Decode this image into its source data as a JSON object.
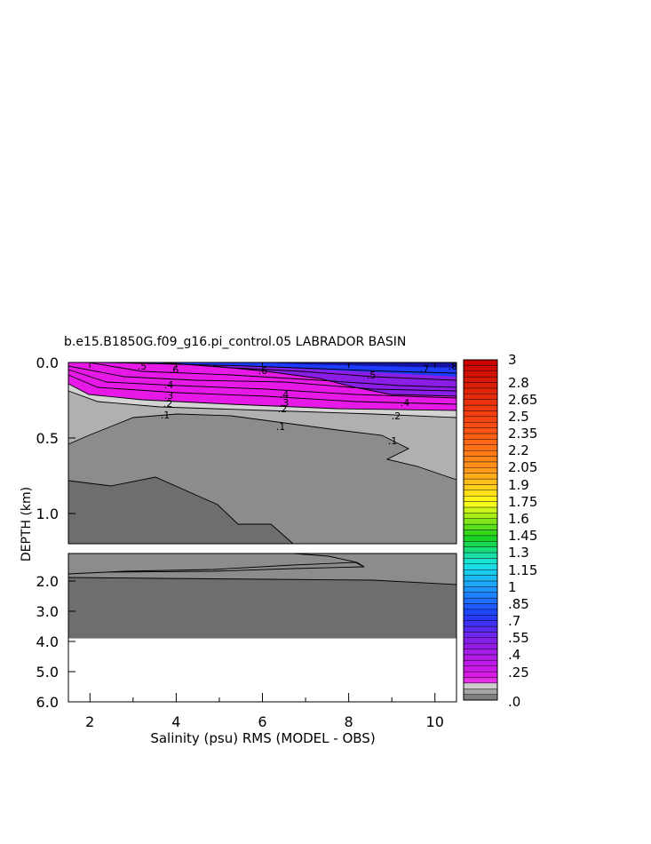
{
  "chart_data": {
    "type": "heatmap",
    "title": "b.e15.B1850G.f09_g16.pi_control.05 LABRADOR BASIN",
    "xlabel": "Salinity (psu) RMS (MODEL - OBS)",
    "ylabel": "DEPTH (km)",
    "xlim": [
      1.5,
      10.5
    ],
    "x_ticks": [
      "2",
      "4",
      "6",
      "8",
      "10"
    ],
    "upper_panel": {
      "ylim": [
        0.0,
        1.2
      ],
      "y_ticks": [
        "0.0",
        "0.5",
        "1.0"
      ]
    },
    "lower_panel": {
      "ylim": [
        1.2,
        6.0
      ],
      "y_ticks": [
        "2.0",
        "3.0",
        "4.0",
        "5.0",
        "6.0"
      ],
      "data_bottom_depth": 3.9
    },
    "contour_labels": [
      ".1",
      ".1",
      ".1",
      ".2",
      ".2",
      ".2",
      ".3",
      ".3",
      ".4",
      ".4",
      ".4",
      ".5",
      ".5",
      ".6",
      ".6",
      ".7",
      ".8"
    ],
    "colorbar": {
      "labels": [
        "3",
        "2.8",
        "2.65",
        "2.5",
        "2.35",
        "2.2",
        "2.05",
        "1.9",
        "1.75",
        "1.6",
        "1.45",
        "1.3",
        "1.15",
        "1",
        ".85",
        ".7",
        ".55",
        ".4",
        ".25",
        ".0"
      ],
      "colors": {
        "grey_dark": "#6e6e6e",
        "grey_mid": "#8c8c8c",
        "grey_light": "#b0b0b0",
        "grey_pale": "#d4d4d4",
        "magenta": "#e619e6",
        "violet": "#8a1ee6",
        "blue": "#1e3cff",
        "cyan": "#19e6e6",
        "green": "#19d219",
        "yellow": "#ffff19",
        "orange": "#ff9619",
        "red": "#c80000"
      }
    }
  }
}
